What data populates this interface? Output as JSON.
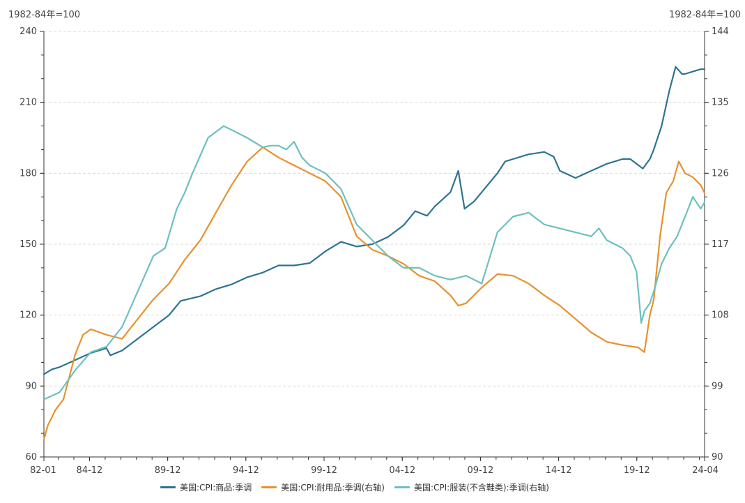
{
  "chart_data": {
    "type": "line",
    "title": "",
    "left_unit": "1982-84年=100",
    "right_unit": "1982-84年=100",
    "y_left": {
      "min": 60,
      "max": 240,
      "ticks": [
        60,
        90,
        120,
        150,
        180,
        210,
        240
      ]
    },
    "y_right": {
      "min": 90,
      "max": 144,
      "ticks": [
        90,
        99,
        108,
        117,
        126,
        135,
        144
      ]
    },
    "x_range": [
      1982.0,
      2024.25
    ],
    "x_tick_labels": [
      {
        "label": "82-01",
        "t": 1982.0
      },
      {
        "label": "84-12",
        "t": 1984.917
      },
      {
        "label": "89-12",
        "t": 1989.917
      },
      {
        "label": "94-12",
        "t": 1994.917
      },
      {
        "label": "99-12",
        "t": 1999.917
      },
      {
        "label": "04-12",
        "t": 2004.917
      },
      {
        "label": "09-12",
        "t": 2009.917
      },
      {
        "label": "14-12",
        "t": 2014.917
      },
      {
        "label": "19-12",
        "t": 2019.917
      },
      {
        "label": "24-04",
        "t": 2024.25
      }
    ],
    "grid": "horizontal dashed",
    "legend_position": "bottom",
    "series": [
      {
        "name": "美国:CPI:商品:季调",
        "axis": "left",
        "color": "#2E7390",
        "points": [
          [
            1982.0,
            95
          ],
          [
            1982.5,
            97
          ],
          [
            1983.0,
            98
          ],
          [
            1984.0,
            101
          ],
          [
            1985.0,
            104
          ],
          [
            1986.0,
            106
          ],
          [
            1986.25,
            103
          ],
          [
            1987.0,
            105
          ],
          [
            1988.0,
            110
          ],
          [
            1989.0,
            115
          ],
          [
            1990.0,
            120
          ],
          [
            1990.75,
            126
          ],
          [
            1992.0,
            128
          ],
          [
            1993.0,
            131
          ],
          [
            1994.0,
            133
          ],
          [
            1995.0,
            136
          ],
          [
            1996.0,
            138
          ],
          [
            1997.0,
            141
          ],
          [
            1998.0,
            141
          ],
          [
            1999.0,
            142
          ],
          [
            2000.0,
            147
          ],
          [
            2001.0,
            151
          ],
          [
            2002.0,
            149
          ],
          [
            2003.0,
            150
          ],
          [
            2004.0,
            153
          ],
          [
            2005.0,
            158
          ],
          [
            2005.75,
            164
          ],
          [
            2006.5,
            162
          ],
          [
            2007.0,
            166
          ],
          [
            2008.0,
            172
          ],
          [
            2008.5,
            181
          ],
          [
            2008.9,
            165
          ],
          [
            2009.5,
            168
          ],
          [
            2010.0,
            172
          ],
          [
            2011.0,
            180
          ],
          [
            2011.5,
            185
          ],
          [
            2012.0,
            186
          ],
          [
            2013.0,
            188
          ],
          [
            2014.0,
            189
          ],
          [
            2014.6,
            187
          ],
          [
            2015.0,
            181
          ],
          [
            2016.0,
            178
          ],
          [
            2017.0,
            181
          ],
          [
            2018.0,
            184
          ],
          [
            2019.0,
            186
          ],
          [
            2019.5,
            186
          ],
          [
            2020.1,
            183
          ],
          [
            2020.3,
            182
          ],
          [
            2020.75,
            186
          ],
          [
            2021.0,
            190
          ],
          [
            2021.5,
            200
          ],
          [
            2022.0,
            215
          ],
          [
            2022.4,
            225
          ],
          [
            2022.8,
            222
          ],
          [
            2023.0,
            222
          ],
          [
            2023.5,
            223
          ],
          [
            2024.0,
            224
          ],
          [
            2024.25,
            224
          ]
        ]
      },
      {
        "name": "美国:CPI:耐用品:季调(右轴)",
        "axis": "right",
        "color": "#E8912C",
        "points": [
          [
            1982.0,
            92.2
          ],
          [
            1982.25,
            94.0
          ],
          [
            1982.75,
            96.0
          ],
          [
            1983.25,
            97.3
          ],
          [
            1984.0,
            103.0
          ],
          [
            1984.5,
            105.5
          ],
          [
            1985.0,
            106.2
          ],
          [
            1986.0,
            105.5
          ],
          [
            1987.0,
            105.0
          ],
          [
            1988.0,
            107.5
          ],
          [
            1989.0,
            110.0
          ],
          [
            1990.0,
            112.0
          ],
          [
            1991.0,
            115.0
          ],
          [
            1992.0,
            117.5
          ],
          [
            1993.0,
            121.0
          ],
          [
            1994.0,
            124.5
          ],
          [
            1995.0,
            127.5
          ],
          [
            1996.0,
            129.3
          ],
          [
            1997.0,
            128.0
          ],
          [
            1998.0,
            127.0
          ],
          [
            1999.0,
            126.0
          ],
          [
            2000.0,
            125.0
          ],
          [
            2001.0,
            123.0
          ],
          [
            2002.0,
            118.0
          ],
          [
            2003.0,
            116.3
          ],
          [
            2004.0,
            115.5
          ],
          [
            2005.0,
            114.5
          ],
          [
            2006.0,
            113.0
          ],
          [
            2007.0,
            112.3
          ],
          [
            2008.0,
            110.5
          ],
          [
            2008.5,
            109.2
          ],
          [
            2009.0,
            109.5
          ],
          [
            2009.5,
            110.5
          ],
          [
            2010.0,
            111.5
          ],
          [
            2011.0,
            113.2
          ],
          [
            2012.0,
            113.0
          ],
          [
            2013.0,
            112.0
          ],
          [
            2014.0,
            110.5
          ],
          [
            2015.0,
            109.2
          ],
          [
            2016.0,
            107.5
          ],
          [
            2017.0,
            105.8
          ],
          [
            2018.0,
            104.6
          ],
          [
            2019.0,
            104.2
          ],
          [
            2020.0,
            103.9
          ],
          [
            2020.4,
            103.3
          ],
          [
            2020.75,
            108.0
          ],
          [
            2021.0,
            110.0
          ],
          [
            2021.4,
            118.0
          ],
          [
            2021.8,
            123.5
          ],
          [
            2022.25,
            125.0
          ],
          [
            2022.6,
            127.5
          ],
          [
            2023.0,
            126.0
          ],
          [
            2023.5,
            125.5
          ],
          [
            2024.0,
            124.5
          ],
          [
            2024.25,
            123.5
          ]
        ]
      },
      {
        "name": "美国:CPI:服装(不含鞋类):季调(右轴)",
        "axis": "right",
        "color": "#6CC0C0",
        "points": [
          [
            1982.0,
            97.3
          ],
          [
            1983.0,
            98.2
          ],
          [
            1984.0,
            101.0
          ],
          [
            1985.0,
            103.3
          ],
          [
            1986.0,
            104.0
          ],
          [
            1987.0,
            106.5
          ],
          [
            1988.0,
            111.0
          ],
          [
            1989.0,
            115.5
          ],
          [
            1989.75,
            116.5
          ],
          [
            1990.5,
            121.5
          ],
          [
            1991.0,
            123.5
          ],
          [
            1991.5,
            126.0
          ],
          [
            1992.5,
            130.5
          ],
          [
            1993.5,
            132.0
          ],
          [
            1994.0,
            131.5
          ],
          [
            1995.0,
            130.5
          ],
          [
            1996.0,
            129.3
          ],
          [
            1996.5,
            129.5
          ],
          [
            1997.0,
            129.5
          ],
          [
            1997.5,
            129.0
          ],
          [
            1998.0,
            130.0
          ],
          [
            1998.5,
            128.0
          ],
          [
            1999.0,
            127.0
          ],
          [
            2000.0,
            126.0
          ],
          [
            2001.0,
            124.0
          ],
          [
            2002.0,
            119.5
          ],
          [
            2003.0,
            117.5
          ],
          [
            2004.0,
            115.5
          ],
          [
            2005.0,
            114.0
          ],
          [
            2006.0,
            114.0
          ],
          [
            2007.0,
            113.0
          ],
          [
            2008.0,
            112.5
          ],
          [
            2009.0,
            113.0
          ],
          [
            2010.0,
            112.0
          ],
          [
            2011.0,
            118.5
          ],
          [
            2012.0,
            120.5
          ],
          [
            2013.0,
            121.0
          ],
          [
            2014.0,
            119.5
          ],
          [
            2015.0,
            119.0
          ],
          [
            2016.0,
            118.5
          ],
          [
            2017.0,
            118.0
          ],
          [
            2017.5,
            119.0
          ],
          [
            2018.0,
            117.5
          ],
          [
            2019.0,
            116.5
          ],
          [
            2019.5,
            115.5
          ],
          [
            2019.9,
            113.5
          ],
          [
            2020.2,
            107.0
          ],
          [
            2020.4,
            108.5
          ],
          [
            2020.75,
            109.5
          ],
          [
            2021.0,
            111.0
          ],
          [
            2021.5,
            114.5
          ],
          [
            2022.0,
            116.5
          ],
          [
            2022.5,
            118.0
          ],
          [
            2023.0,
            120.5
          ],
          [
            2023.5,
            123.0
          ],
          [
            2024.0,
            121.5
          ],
          [
            2024.25,
            122.3
          ]
        ]
      }
    ]
  }
}
